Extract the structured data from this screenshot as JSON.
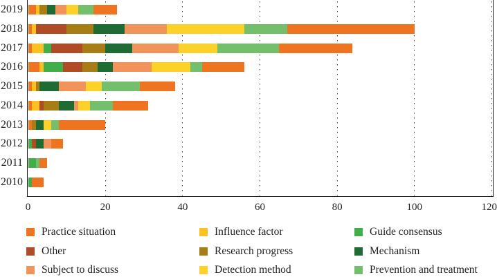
{
  "chart_data": {
    "type": "bar",
    "orientation": "horizontal",
    "stacked": true,
    "title": "",
    "xlabel": "",
    "ylabel": "",
    "xlim": [
      0,
      120
    ],
    "x_ticks": [
      "0",
      "20",
      "40",
      "60",
      "80",
      "100",
      "120"
    ],
    "grid": "vertical-dotted",
    "legend_position": "bottom",
    "categories": [
      {
        "id": "practice",
        "label": "Practice situation",
        "color": "#EE7422"
      },
      {
        "id": "influence",
        "label": "Influence factor",
        "color": "#FBC120"
      },
      {
        "id": "guide",
        "label": "Guide consensus",
        "color": "#41AE49"
      },
      {
        "id": "other",
        "label": "Other",
        "color": "#AF4B25"
      },
      {
        "id": "research",
        "label": "Research progress",
        "color": "#A87D15"
      },
      {
        "id": "mechanism",
        "label": "Mechanism",
        "color": "#1E6B33"
      },
      {
        "id": "subject",
        "label": "Subject to discuss",
        "color": "#F0945C"
      },
      {
        "id": "detection",
        "label": "Detection method",
        "color": "#FCD12A"
      },
      {
        "id": "prevention",
        "label": "Prevention and treatment",
        "color": "#74BF6B"
      }
    ],
    "rows": [
      {
        "year": "2019",
        "total": 23,
        "segments": [
          [
            "practice",
            2
          ],
          [
            "influence",
            1
          ],
          [
            "research",
            2
          ],
          [
            "mechanism",
            2
          ],
          [
            "subject",
            3
          ],
          [
            "detection",
            3
          ],
          [
            "prevention",
            4
          ],
          [
            "practice",
            6
          ]
        ]
      },
      {
        "year": "2018",
        "total": 100,
        "segments": [
          [
            "practice",
            1
          ],
          [
            "influence",
            1
          ],
          [
            "other",
            8
          ],
          [
            "research",
            7
          ],
          [
            "mechanism",
            8
          ],
          [
            "subject",
            11
          ],
          [
            "detection",
            20
          ],
          [
            "prevention",
            11
          ],
          [
            "practice",
            33
          ]
        ]
      },
      {
        "year": "2017",
        "total": 84,
        "segments": [
          [
            "practice",
            1
          ],
          [
            "influence",
            3
          ],
          [
            "guide",
            2
          ],
          [
            "other",
            8
          ],
          [
            "research",
            6
          ],
          [
            "mechanism",
            7
          ],
          [
            "subject",
            12
          ],
          [
            "detection",
            10
          ],
          [
            "prevention",
            16
          ],
          [
            "practice",
            19
          ]
        ]
      },
      {
        "year": "2016",
        "total": 56,
        "segments": [
          [
            "practice",
            3
          ],
          [
            "influence",
            1
          ],
          [
            "guide",
            5
          ],
          [
            "other",
            5
          ],
          [
            "research",
            4
          ],
          [
            "mechanism",
            4
          ],
          [
            "subject",
            10
          ],
          [
            "detection",
            10
          ],
          [
            "prevention",
            3
          ],
          [
            "practice",
            11
          ]
        ]
      },
      {
        "year": "2015",
        "total": 38,
        "segments": [
          [
            "practice",
            1
          ],
          [
            "influence",
            1
          ],
          [
            "research",
            1
          ],
          [
            "mechanism",
            5
          ],
          [
            "subject",
            7
          ],
          [
            "detection",
            4
          ],
          [
            "prevention",
            10
          ],
          [
            "practice",
            9
          ]
        ]
      },
      {
        "year": "2014",
        "total": 31,
        "segments": [
          [
            "practice",
            1
          ],
          [
            "influence",
            2
          ],
          [
            "other",
            1
          ],
          [
            "research",
            4
          ],
          [
            "mechanism",
            4
          ],
          [
            "subject",
            1
          ],
          [
            "detection",
            3
          ],
          [
            "prevention",
            6
          ],
          [
            "practice",
            9
          ]
        ]
      },
      {
        "year": "2013",
        "total": 20,
        "segments": [
          [
            "practice",
            1
          ],
          [
            "research",
            1
          ],
          [
            "mechanism",
            2
          ],
          [
            "detection",
            2
          ],
          [
            "prevention",
            2
          ],
          [
            "practice",
            12
          ]
        ]
      },
      {
        "year": "2012",
        "total": 9,
        "segments": [
          [
            "guide",
            1
          ],
          [
            "other",
            1
          ],
          [
            "mechanism",
            2
          ],
          [
            "subject",
            2
          ],
          [
            "practice",
            3
          ]
        ]
      },
      {
        "year": "2011",
        "total": 5,
        "segments": [
          [
            "guide",
            2
          ],
          [
            "prevention",
            1
          ],
          [
            "practice",
            2
          ]
        ]
      },
      {
        "year": "2010",
        "total": 4,
        "segments": [
          [
            "guide",
            1
          ],
          [
            "practice",
            3
          ]
        ]
      }
    ]
  },
  "legend": {
    "columns": [
      [
        "practice",
        "other",
        "subject"
      ],
      [
        "influence",
        "research",
        "detection"
      ],
      [
        "guide",
        "mechanism",
        "prevention"
      ]
    ]
  }
}
